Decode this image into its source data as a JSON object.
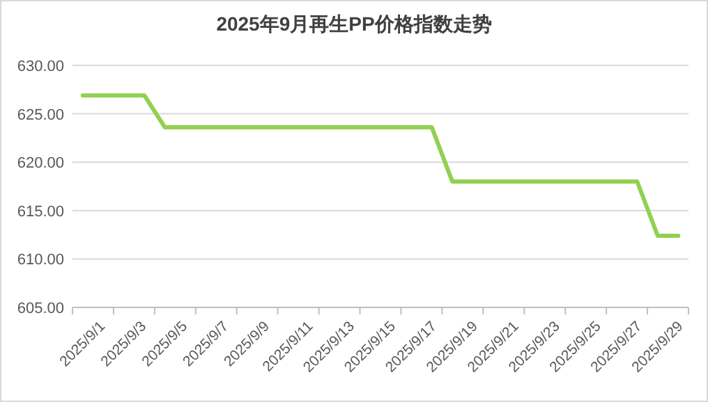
{
  "chart_data": {
    "type": "line",
    "title": "2025年9月再生PP价格指数走势",
    "categories": [
      "2025/9/1",
      null,
      "2025/9/3",
      null,
      "2025/9/5",
      null,
      "2025/9/7",
      null,
      "2025/9/9",
      null,
      "2025/9/11",
      null,
      "2025/9/13",
      null,
      "2025/9/15",
      null,
      "2025/9/17",
      null,
      "2025/9/19",
      null,
      "2025/9/21",
      null,
      "2025/9/23",
      null,
      "2025/9/25",
      null,
      "2025/9/27",
      null,
      "2025/9/29",
      null
    ],
    "values": [
      626.9,
      626.9,
      626.9,
      626.9,
      623.6,
      623.6,
      623.6,
      623.6,
      623.6,
      623.6,
      623.6,
      623.6,
      623.6,
      623.6,
      623.6,
      623.6,
      623.6,
      623.6,
      618.0,
      618.0,
      618.0,
      618.0,
      618.0,
      618.0,
      618.0,
      618.0,
      618.0,
      618.0,
      612.4,
      612.4
    ],
    "color": "#92d050",
    "ylim": [
      605,
      630
    ],
    "yticks": [
      {
        "value": 605,
        "label": "605.00"
      },
      {
        "value": 610,
        "label": "610.00"
      },
      {
        "value": 615,
        "label": "615.00"
      },
      {
        "value": 620,
        "label": "620.00"
      },
      {
        "value": 625,
        "label": "625.00"
      },
      {
        "value": 630,
        "label": "630.00"
      }
    ],
    "grid": "y"
  }
}
